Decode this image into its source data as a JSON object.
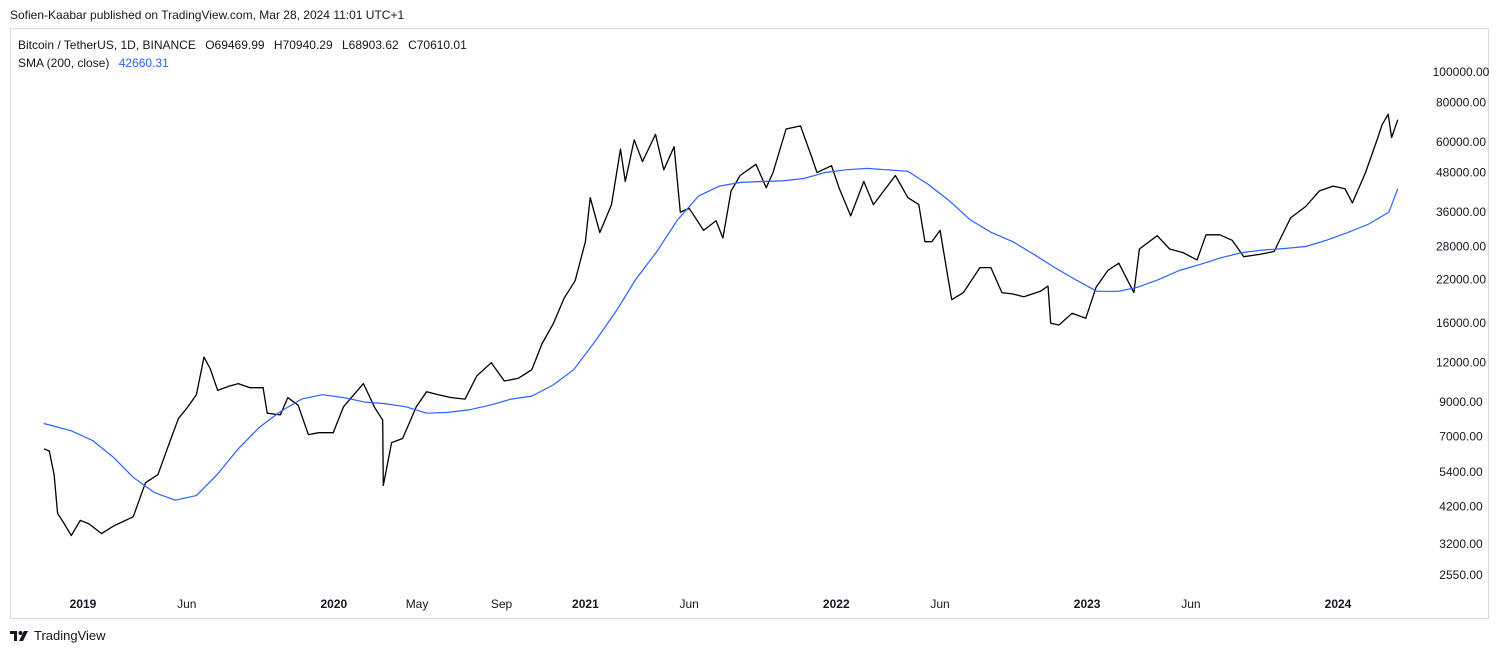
{
  "header": {
    "published_by": "Sofien-Kaabar published on TradingView.com, Mar 28, 2024 11:01 UTC+1"
  },
  "legend": {
    "symbol": "Bitcoin / TetherUS, 1D, BINANCE",
    "open": "O69469.99",
    "high": "H70940.29",
    "low": "L68903.62",
    "close": "C70610.01",
    "indicator": "SMA (200, close)",
    "indicator_value": "42660.31"
  },
  "footer": {
    "brand": "TradingView"
  },
  "colors": {
    "price": "#000000",
    "sma": "#2962ff",
    "border": "#d6d9de"
  },
  "chart_data": {
    "type": "line",
    "scale": "log",
    "y_ticks": [
      "100000.00",
      "80000.00",
      "60000.00",
      "48000.00",
      "36000.00",
      "28000.00",
      "22000.00",
      "16000.00",
      "12000.00",
      "9000.00",
      "7000.00",
      "5400.00",
      "4200.00",
      "3200.00",
      "2550.00"
    ],
    "x_ticks": [
      "2019",
      "Jun",
      "2020",
      "May",
      "Sep",
      "2021",
      "Jun",
      "2022",
      "Jun",
      "2023",
      "Jun",
      "2024"
    ],
    "year_ticks": [
      "2019",
      "2020",
      "2021",
      "2022",
      "2023",
      "2024"
    ],
    "series": [
      {
        "name": "Bitcoin / TetherUS",
        "x": [
          "2018-11-05",
          "2018-11-13",
          "2018-11-20",
          "2018-11-25",
          "2018-12-05",
          "2018-12-15",
          "2018-12-28",
          "2019-01-10",
          "2019-01-28",
          "2019-02-15",
          "2019-03-15",
          "2019-04-02",
          "2019-04-20",
          "2019-05-10",
          "2019-05-20",
          "2019-06-01",
          "2019-06-15",
          "2019-06-26",
          "2019-07-05",
          "2019-07-16",
          "2019-08-01",
          "2019-08-15",
          "2019-09-01",
          "2019-09-20",
          "2019-09-26",
          "2019-10-15",
          "2019-10-26",
          "2019-11-10",
          "2019-11-25",
          "2019-12-10",
          "2019-12-31",
          "2020-01-15",
          "2020-02-13",
          "2020-03-01",
          "2020-03-12",
          "2020-03-13",
          "2020-03-25",
          "2020-04-10",
          "2020-04-30",
          "2020-05-15",
          "2020-06-01",
          "2020-06-20",
          "2020-07-10",
          "2020-07-27",
          "2020-08-17",
          "2020-09-05",
          "2020-09-25",
          "2020-10-15",
          "2020-10-30",
          "2020-11-15",
          "2020-12-01",
          "2020-12-17",
          "2021-01-01",
          "2021-01-08",
          "2021-01-22",
          "2021-02-08",
          "2021-02-21",
          "2021-02-28",
          "2021-03-13",
          "2021-03-25",
          "2021-04-13",
          "2021-04-25",
          "2021-05-10",
          "2021-05-19",
          "2021-06-01",
          "2021-06-22",
          "2021-07-10",
          "2021-07-20",
          "2021-08-01",
          "2021-08-14",
          "2021-09-06",
          "2021-09-21",
          "2021-10-01",
          "2021-10-20",
          "2021-11-10",
          "2021-11-26",
          "2021-12-04",
          "2021-12-25",
          "2022-01-05",
          "2022-01-22",
          "2022-02-10",
          "2022-02-24",
          "2022-03-28",
          "2022-04-15",
          "2022-05-01",
          "2022-05-10",
          "2022-05-20",
          "2022-06-01",
          "2022-06-13",
          "2022-06-18",
          "2022-07-05",
          "2022-07-29",
          "2022-08-14",
          "2022-08-30",
          "2022-09-15",
          "2022-10-01",
          "2022-10-25",
          "2022-11-05",
          "2022-11-09",
          "2022-11-21",
          "2022-12-10",
          "2022-12-30",
          "2023-01-14",
          "2023-01-31",
          "2023-02-16",
          "2023-03-10",
          "2023-03-18",
          "2023-04-13",
          "2023-05-01",
          "2023-05-20",
          "2023-06-10",
          "2023-06-23",
          "2023-07-13",
          "2023-07-31",
          "2023-08-17",
          "2023-09-11",
          "2023-09-30",
          "2023-10-24",
          "2023-11-15",
          "2023-12-05",
          "2023-12-25",
          "2024-01-11",
          "2024-01-22",
          "2024-02-10",
          "2024-02-28",
          "2024-03-05",
          "2024-03-14",
          "2024-03-19",
          "2024-03-28"
        ],
        "y": [
          6400,
          6300,
          5300,
          4000,
          3700,
          3400,
          3800,
          3700,
          3450,
          3650,
          3900,
          5000,
          5300,
          7000,
          8000,
          8600,
          9500,
          12500,
          11500,
          9800,
          10100,
          10300,
          10000,
          10000,
          8300,
          8200,
          9300,
          8800,
          7100,
          7200,
          7200,
          8700,
          10300,
          8600,
          7900,
          4900,
          6700,
          6900,
          8700,
          9700,
          9500,
          9300,
          9200,
          10900,
          12000,
          10500,
          10700,
          11400,
          13800,
          15900,
          19200,
          21800,
          29000,
          40000,
          31000,
          38000,
          57000,
          45000,
          61000,
          52000,
          63500,
          49000,
          58000,
          36000,
          37000,
          31500,
          33800,
          29800,
          42000,
          47000,
          51000,
          43000,
          48000,
          66000,
          67500,
          54000,
          48000,
          50500,
          43000,
          35000,
          45000,
          38000,
          47000,
          40000,
          38000,
          29000,
          29000,
          31500,
          22000,
          19000,
          20000,
          24000,
          24000,
          20000,
          19800,
          19400,
          20200,
          21000,
          16000,
          15800,
          17200,
          16600,
          20800,
          23500,
          24800,
          20000,
          27500,
          30300,
          27500,
          26800,
          25400,
          30500,
          30500,
          29300,
          26000,
          26500,
          27000,
          34500,
          37500,
          42000,
          43500,
          42700,
          38500,
          48000,
          62000,
          68000,
          73500,
          62000,
          70610
        ]
      },
      {
        "name": "SMA (200, close)",
        "x": [
          "2018-11-05",
          "2018-12-15",
          "2019-01-15",
          "2019-02-15",
          "2019-03-15",
          "2019-04-15",
          "2019-05-15",
          "2019-06-15",
          "2019-07-15",
          "2019-08-15",
          "2019-09-15",
          "2019-10-15",
          "2019-11-15",
          "2019-12-15",
          "2020-01-15",
          "2020-02-15",
          "2020-03-15",
          "2020-04-15",
          "2020-05-15",
          "2020-06-15",
          "2020-07-15",
          "2020-08-15",
          "2020-09-15",
          "2020-10-15",
          "2020-11-15",
          "2020-12-15",
          "2021-01-15",
          "2021-02-15",
          "2021-03-15",
          "2021-04-15",
          "2021-05-15",
          "2021-06-15",
          "2021-07-15",
          "2021-08-15",
          "2021-09-15",
          "2021-10-15",
          "2021-11-15",
          "2021-12-15",
          "2022-01-15",
          "2022-02-15",
          "2022-03-15",
          "2022-04-15",
          "2022-05-15",
          "2022-06-15",
          "2022-07-15",
          "2022-08-15",
          "2022-09-15",
          "2022-10-15",
          "2022-11-15",
          "2022-12-15",
          "2023-01-15",
          "2023-02-15",
          "2023-03-15",
          "2023-04-15",
          "2023-05-15",
          "2023-06-15",
          "2023-07-15",
          "2023-08-15",
          "2023-09-15",
          "2023-10-15",
          "2023-11-15",
          "2023-12-15",
          "2024-01-15",
          "2024-02-15",
          "2024-03-15",
          "2024-03-28"
        ],
        "y": [
          7700,
          7300,
          6800,
          6000,
          5200,
          4650,
          4400,
          4550,
          5300,
          6400,
          7500,
          8400,
          9200,
          9500,
          9300,
          9000,
          8900,
          8700,
          8300,
          8350,
          8500,
          8800,
          9200,
          9400,
          10200,
          11400,
          14000,
          17500,
          22000,
          27000,
          34000,
          40500,
          43500,
          44700,
          45000,
          45200,
          46000,
          48000,
          49000,
          49500,
          49000,
          48500,
          44000,
          39000,
          34000,
          31000,
          29000,
          26500,
          24000,
          22000,
          20200,
          20200,
          20800,
          22000,
          23500,
          24600,
          25800,
          26800,
          27300,
          27600,
          28000,
          29300,
          31000,
          33000,
          36000,
          42660
        ]
      }
    ]
  }
}
